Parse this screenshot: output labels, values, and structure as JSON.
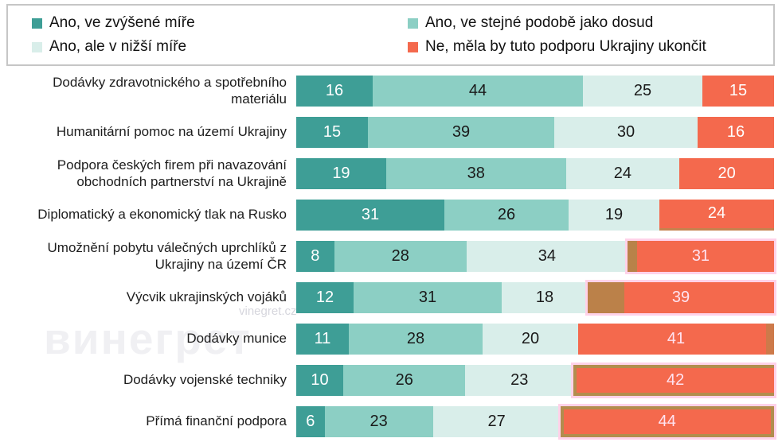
{
  "legend": {
    "items": [
      {
        "label": "Ano, ve zvýšené míře",
        "color": "#3e9e96"
      },
      {
        "label": "Ano, ve stejné podobě jako dosud",
        "color": "#8ccfc4"
      },
      {
        "label": "Ano, ale v nižší míře",
        "color": "#d9eeea"
      },
      {
        "label": "Ne, měla by tuto podporu Ukrajiny ukončit",
        "color": "#f4694d"
      }
    ]
  },
  "watermark": {
    "big_text": "винегрет",
    "small_text": "vinegret.cz"
  },
  "chart_data": {
    "type": "bar",
    "orientation": "horizontal",
    "stacked": true,
    "units": "percent",
    "xlim": [
      0,
      100
    ],
    "legend_position": "top",
    "value_labels": "inside",
    "grid": false,
    "categories": [
      "Dodávky zdravotnického a spotřebního materiálu",
      "Humanitární pomoc na území Ukrajiny",
      "Podpora českých firem při navazování obchodních partnerství na Ukrajině",
      "Diplomatický a ekonomický tlak na Rusko",
      "Umožnění pobytu válečných uprchlíků z Ukrajiny na území ČR",
      "Výcvik ukrajinských vojáků",
      "Dodávky munice",
      "Dodávky vojenské techniky",
      "Přímá finanční podpora"
    ],
    "series": [
      {
        "name": "Ano, ve zvýšené míře",
        "color": "#3e9e96",
        "text_color": "#ffffff",
        "values": [
          16,
          15,
          19,
          31,
          8,
          12,
          11,
          10,
          6
        ]
      },
      {
        "name": "Ano, ve stejné podobě jako dosud",
        "color": "#8ccfc4",
        "text_color": "#1a1a1a",
        "values": [
          44,
          39,
          38,
          26,
          28,
          31,
          28,
          26,
          23
        ]
      },
      {
        "name": "Ano, ale v nižší míře",
        "color": "#d9eeea",
        "text_color": "#1a1a1a",
        "values": [
          25,
          30,
          24,
          19,
          34,
          18,
          20,
          23,
          27
        ]
      },
      {
        "name": "Ne, měla by tuto podporu Ukrajiny ukončit",
        "color": "#f4694d",
        "text_color": "#ffffff",
        "values": [
          15,
          16,
          20,
          24,
          31,
          39,
          41,
          42,
          44
        ]
      }
    ]
  }
}
